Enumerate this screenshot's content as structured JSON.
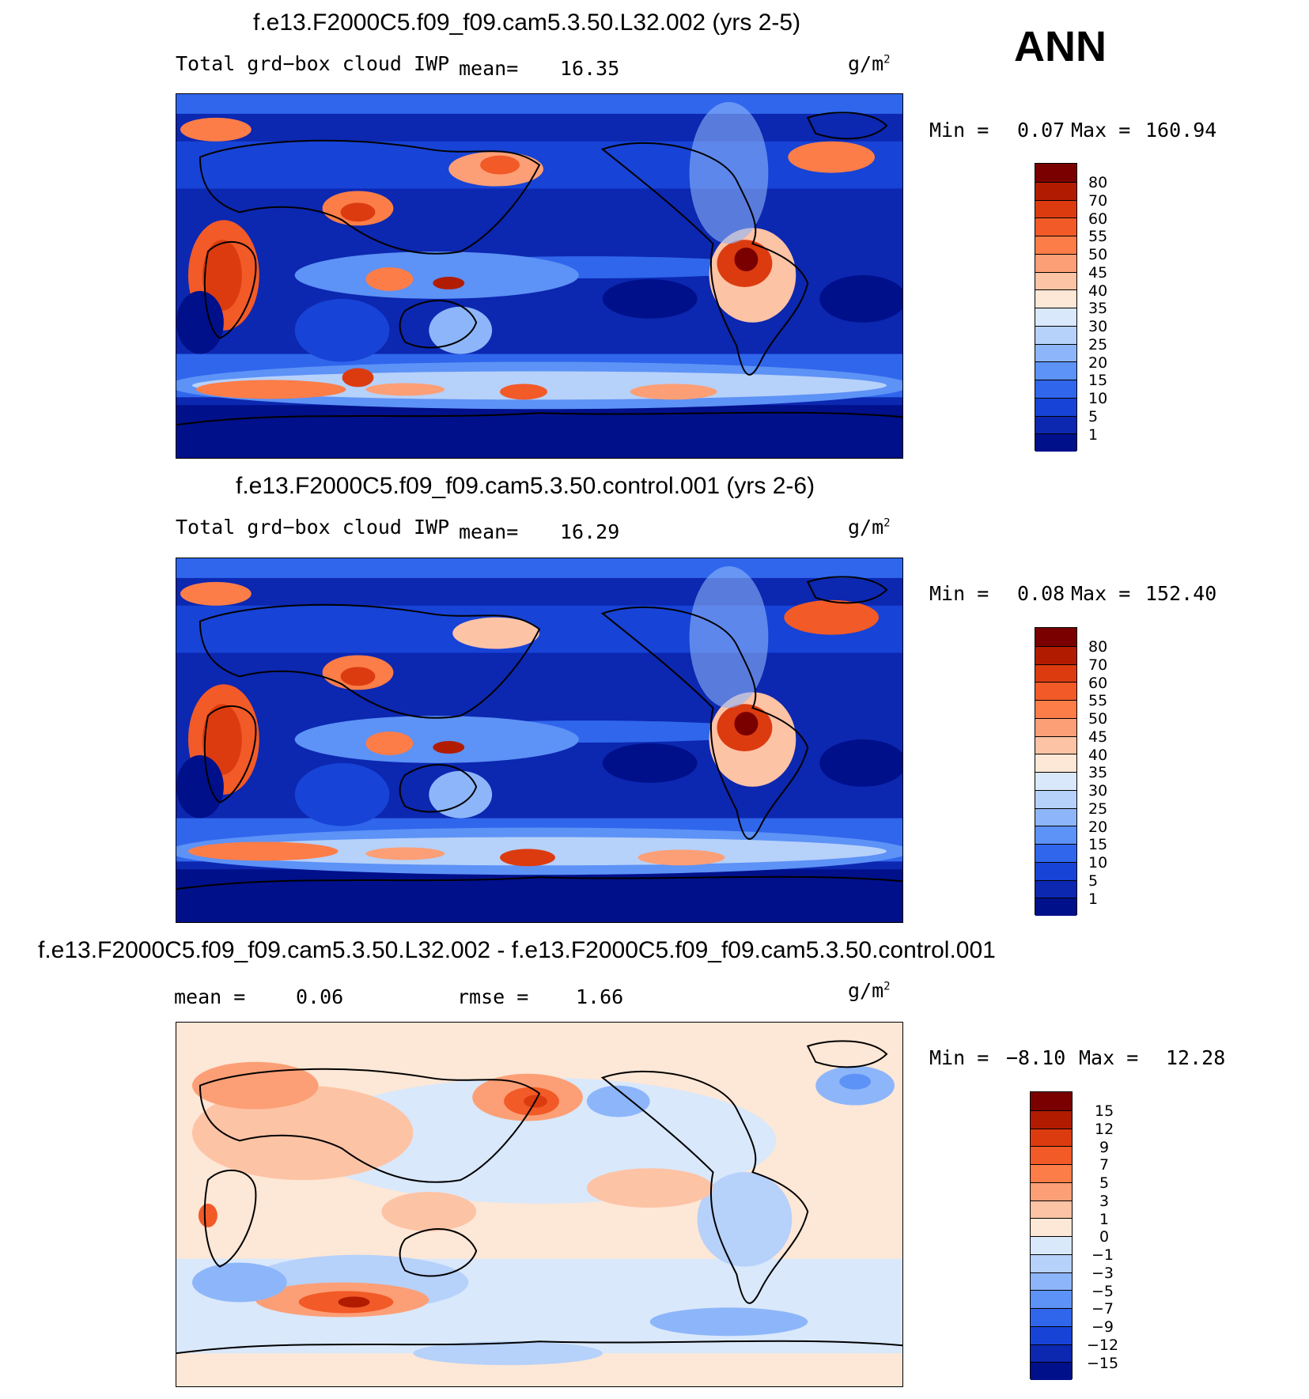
{
  "season": "ANN",
  "panels": [
    {
      "title": "f.e13.F2000C5.f09_f09.cam5.3.50.L32.002 (yrs 2-5)",
      "variable": "Total grd−box cloud IWP",
      "mean_label": "mean=",
      "mean_value": "16.35",
      "units": "g/m",
      "units_exp": "2",
      "min_label": "Min =",
      "min_value": "0.07",
      "max_label": "Max =",
      "max_value": "160.94",
      "levels": [
        "80",
        "70",
        "60",
        "55",
        "50",
        "45",
        "40",
        "35",
        "30",
        "25",
        "20",
        "15",
        "10",
        "5",
        "1"
      ]
    },
    {
      "title": "f.e13.F2000C5.f09_f09.cam5.3.50.control.001 (yrs 2-6)",
      "variable": "Total grd−box cloud IWP",
      "mean_label": "mean=",
      "mean_value": "16.29",
      "units": "g/m",
      "units_exp": "2",
      "min_label": "Min =",
      "min_value": "0.08",
      "max_label": "Max =",
      "max_value": "152.40",
      "levels": [
        "80",
        "70",
        "60",
        "55",
        "50",
        "45",
        "40",
        "35",
        "30",
        "25",
        "20",
        "15",
        "10",
        "5",
        "1"
      ]
    },
    {
      "title": "f.e13.F2000C5.f09_f09.cam5.3.50.L32.002 - f.e13.F2000C5.f09_f09.cam5.3.50.control.001",
      "mean_label": "mean =",
      "mean_value": "0.06",
      "rmse_label": "rmse =",
      "rmse_value": "1.66",
      "units": "g/m",
      "units_exp": "2",
      "min_label": "Min =",
      "min_value": "−8.10",
      "max_label": "Max =",
      "max_value": "12.28",
      "levels": [
        "15",
        "12",
        "9",
        "7",
        "5",
        "3",
        "1",
        "0",
        "−1",
        "−3",
        "−5",
        "−7",
        "−9",
        "−12",
        "−15"
      ]
    }
  ],
  "colors": {
    "abs_scale": [
      "#7a0000",
      "#b11c00",
      "#dc3b10",
      "#f25a28",
      "#fc7d48",
      "#fc9f76",
      "#fdc3a5",
      "#fde7d6",
      "#d9e8fb",
      "#b6d1fa",
      "#8db6fa",
      "#5d92f6",
      "#2f66ec",
      "#1743d6",
      "#0c27b0",
      "#00108a"
    ],
    "diff_scale": [
      "#7a0000",
      "#b11c00",
      "#dc3b10",
      "#f25a28",
      "#fc7d48",
      "#fc9f76",
      "#fdc3a5",
      "#fde7d6",
      "#d9e8fb",
      "#b6d1fa",
      "#8db6fa",
      "#5d92f6",
      "#2f66ec",
      "#1743d6",
      "#0c27b0",
      "#00108a"
    ]
  },
  "chart_data": [
    {
      "type": "heatmap",
      "title": "f.e13.F2000C5.f09_f09.cam5.3.50.L32.002 (yrs 2-5)",
      "variable": "Total grd-box cloud IWP",
      "units": "g/m2",
      "mean": 16.35,
      "min": 0.07,
      "max": 160.94,
      "contour_levels": [
        1,
        5,
        10,
        15,
        20,
        25,
        30,
        35,
        40,
        45,
        50,
        55,
        60,
        70,
        80
      ]
    },
    {
      "type": "heatmap",
      "title": "f.e13.F2000C5.f09_f09.cam5.3.50.control.001 (yrs 2-6)",
      "variable": "Total grd-box cloud IWP",
      "units": "g/m2",
      "mean": 16.29,
      "min": 0.08,
      "max": 152.4,
      "contour_levels": [
        1,
        5,
        10,
        15,
        20,
        25,
        30,
        35,
        40,
        45,
        50,
        55,
        60,
        70,
        80
      ]
    },
    {
      "type": "heatmap",
      "title": "f.e13.F2000C5.f09_f09.cam5.3.50.L32.002 - f.e13.F2000C5.f09_f09.cam5.3.50.control.001",
      "units": "g/m2",
      "mean": 0.06,
      "rmse": 1.66,
      "min": -8.1,
      "max": 12.28,
      "contour_levels": [
        -15,
        -12,
        -9,
        -7,
        -5,
        -3,
        -1,
        0,
        1,
        3,
        5,
        7,
        9,
        12,
        15
      ]
    }
  ]
}
